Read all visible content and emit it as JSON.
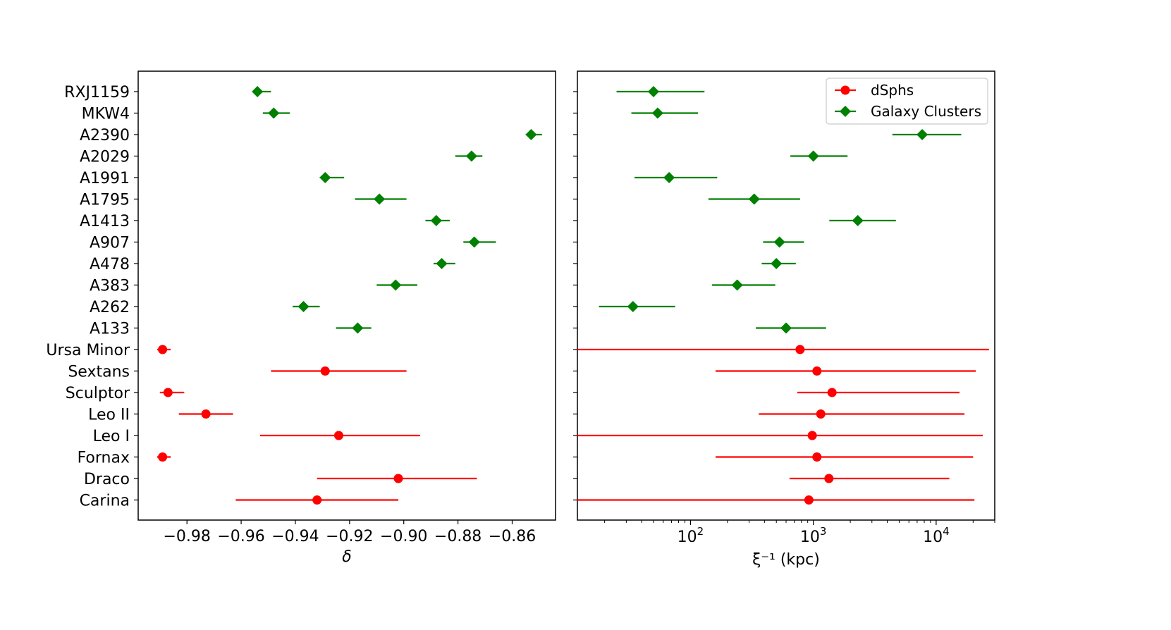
{
  "chart_data": [
    {
      "type": "scatter",
      "panel": "left",
      "xlabel": "δ",
      "ylabel": "",
      "xlim": [
        -0.998,
        -0.844
      ],
      "xticks": [
        -0.98,
        -0.96,
        -0.94,
        -0.92,
        -0.9,
        -0.88,
        -0.86
      ],
      "xtick_labels": [
        "−0.98",
        "−0.96",
        "−0.94",
        "−0.92",
        "−0.90",
        "−0.88",
        "−0.86"
      ],
      "categories": [
        "RXJ1159",
        "MKW4",
        "A2390",
        "A2029",
        "A1991",
        "A1795",
        "A1413",
        "A907",
        "A478",
        "A383",
        "A262",
        "A133",
        "Ursa Minor",
        "Sextans",
        "Sculptor",
        "Leo II",
        "Leo I",
        "Fornax",
        "Draco",
        "Carina"
      ],
      "grid": false,
      "legend": "none",
      "series": [
        {
          "name": "Galaxy Clusters",
          "marker": "diamond",
          "color": "#008000",
          "points": [
            {
              "label": "RXJ1159",
              "value": -0.954,
              "low": -0.955,
              "high": -0.949
            },
            {
              "label": "MKW4",
              "value": -0.948,
              "low": -0.952,
              "high": -0.942
            },
            {
              "label": "A2390",
              "value": -0.853,
              "low": -0.855,
              "high": -0.849
            },
            {
              "label": "A2029",
              "value": -0.875,
              "low": -0.881,
              "high": -0.871
            },
            {
              "label": "A1991",
              "value": -0.929,
              "low": -0.931,
              "high": -0.922
            },
            {
              "label": "A1795",
              "value": -0.909,
              "low": -0.918,
              "high": -0.899
            },
            {
              "label": "A1413",
              "value": -0.888,
              "low": -0.892,
              "high": -0.883
            },
            {
              "label": "A907",
              "value": -0.874,
              "low": -0.878,
              "high": -0.866
            },
            {
              "label": "A478",
              "value": -0.886,
              "low": -0.889,
              "high": -0.881
            },
            {
              "label": "A383",
              "value": -0.903,
              "low": -0.91,
              "high": -0.895
            },
            {
              "label": "A262",
              "value": -0.937,
              "low": -0.941,
              "high": -0.931
            },
            {
              "label": "A133",
              "value": -0.917,
              "low": -0.925,
              "high": -0.912
            }
          ]
        },
        {
          "name": "dSphs",
          "marker": "circle",
          "color": "#ff0000",
          "points": [
            {
              "label": "Ursa Minor",
              "value": -0.989,
              "low": -0.991,
              "high": -0.986
            },
            {
              "label": "Sextans",
              "value": -0.929,
              "low": -0.949,
              "high": -0.899
            },
            {
              "label": "Sculptor",
              "value": -0.987,
              "low": -0.99,
              "high": -0.981
            },
            {
              "label": "Leo II",
              "value": -0.973,
              "low": -0.983,
              "high": -0.963
            },
            {
              "label": "Leo I",
              "value": -0.924,
              "low": -0.953,
              "high": -0.894
            },
            {
              "label": "Fornax",
              "value": -0.989,
              "low": -0.991,
              "high": -0.986
            },
            {
              "label": "Draco",
              "value": -0.902,
              "low": -0.932,
              "high": -0.873
            },
            {
              "label": "Carina",
              "value": -0.932,
              "low": -0.962,
              "high": -0.902
            }
          ]
        }
      ]
    },
    {
      "type": "scatter",
      "panel": "right",
      "xlabel": "ξ⁻¹ (kpc)",
      "ylabel": "",
      "xscale": "log",
      "xlim": [
        12,
        30000
      ],
      "xticks": [
        100,
        1000,
        10000
      ],
      "xtick_labels": [
        [
          "10",
          "2"
        ],
        [
          "10",
          "3"
        ],
        [
          "10",
          "4"
        ]
      ],
      "grid": false,
      "legend": "top-right",
      "series": [
        {
          "name": "Galaxy Clusters",
          "marker": "diamond",
          "color": "#008000",
          "points": [
            {
              "label": "RXJ1159",
              "value": 50,
              "low": 25,
              "high": 130
            },
            {
              "label": "MKW4",
              "value": 54,
              "low": 33,
              "high": 115
            },
            {
              "label": "A2390",
              "value": 7700,
              "low": 4400,
              "high": 16000
            },
            {
              "label": "A2029",
              "value": 1000,
              "low": 650,
              "high": 1900
            },
            {
              "label": "A1991",
              "value": 67,
              "low": 35,
              "high": 165
            },
            {
              "label": "A1795",
              "value": 330,
              "low": 140,
              "high": 780
            },
            {
              "label": "A1413",
              "value": 2300,
              "low": 1350,
              "high": 4700
            },
            {
              "label": "A907",
              "value": 530,
              "low": 390,
              "high": 840
            },
            {
              "label": "A478",
              "value": 500,
              "low": 380,
              "high": 720
            },
            {
              "label": "A383",
              "value": 240,
              "low": 150,
              "high": 490
            },
            {
              "label": "A262",
              "value": 34,
              "low": 18,
              "high": 75
            },
            {
              "label": "A133",
              "value": 600,
              "low": 340,
              "high": 1270
            }
          ]
        },
        {
          "name": "dSphs",
          "marker": "circle",
          "color": "#ff0000",
          "points": [
            {
              "label": "Ursa Minor",
              "value": 780,
              "low": 12,
              "high": 27000
            },
            {
              "label": "Sextans",
              "value": 1070,
              "low": 160,
              "high": 21000
            },
            {
              "label": "Sculptor",
              "value": 1420,
              "low": 740,
              "high": 15500
            },
            {
              "label": "Leo II",
              "value": 1150,
              "low": 360,
              "high": 17000
            },
            {
              "label": "Leo I",
              "value": 980,
              "low": 12,
              "high": 24000
            },
            {
              "label": "Fornax",
              "value": 1070,
              "low": 160,
              "high": 20000
            },
            {
              "label": "Draco",
              "value": 1340,
              "low": 640,
              "high": 12800
            },
            {
              "label": "Carina",
              "value": 920,
              "low": 12,
              "high": 20500
            }
          ]
        }
      ]
    }
  ],
  "legend": {
    "entries": [
      "dSphs",
      "Galaxy Clusters"
    ]
  }
}
